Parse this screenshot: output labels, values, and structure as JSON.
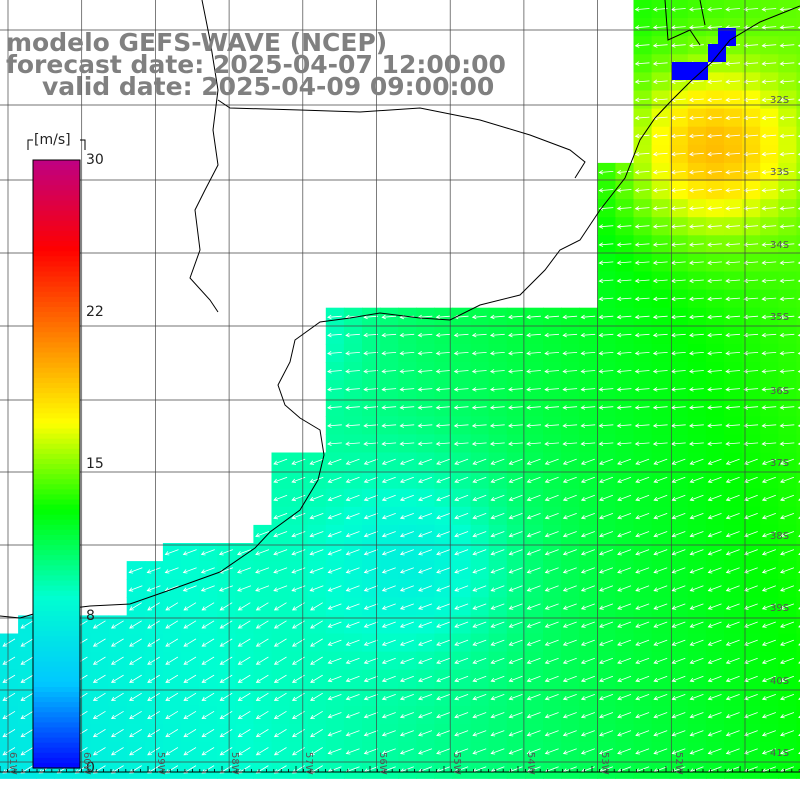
{
  "header": {
    "line1": "modelo GEFS-WAVE (NCEP)",
    "line2": "forecast date: 2025-04-07 12:00:00",
    "line3": "valid date: 2025-04-09 09:00:00"
  },
  "colorbar": {
    "unit": "[m/s]",
    "ticks": [
      "30",
      "22",
      "15",
      "8",
      "0"
    ],
    "colors": [
      "#0000ff",
      "#00c8ff",
      "#00ffd0",
      "#00ff00",
      "#ffff00",
      "#ff8000",
      "#ff0000",
      "#c00080"
    ]
  },
  "grid": {
    "lat_labels": [
      "32S",
      "33S",
      "34S",
      "35S",
      "36S",
      "37S",
      "38S",
      "39S",
      "40S",
      "41S"
    ],
    "lon_labels": [
      "61W",
      "60W",
      "59W",
      "58W",
      "57W",
      "56W",
      "55W",
      "54W",
      "53W",
      "52W"
    ]
  }
}
